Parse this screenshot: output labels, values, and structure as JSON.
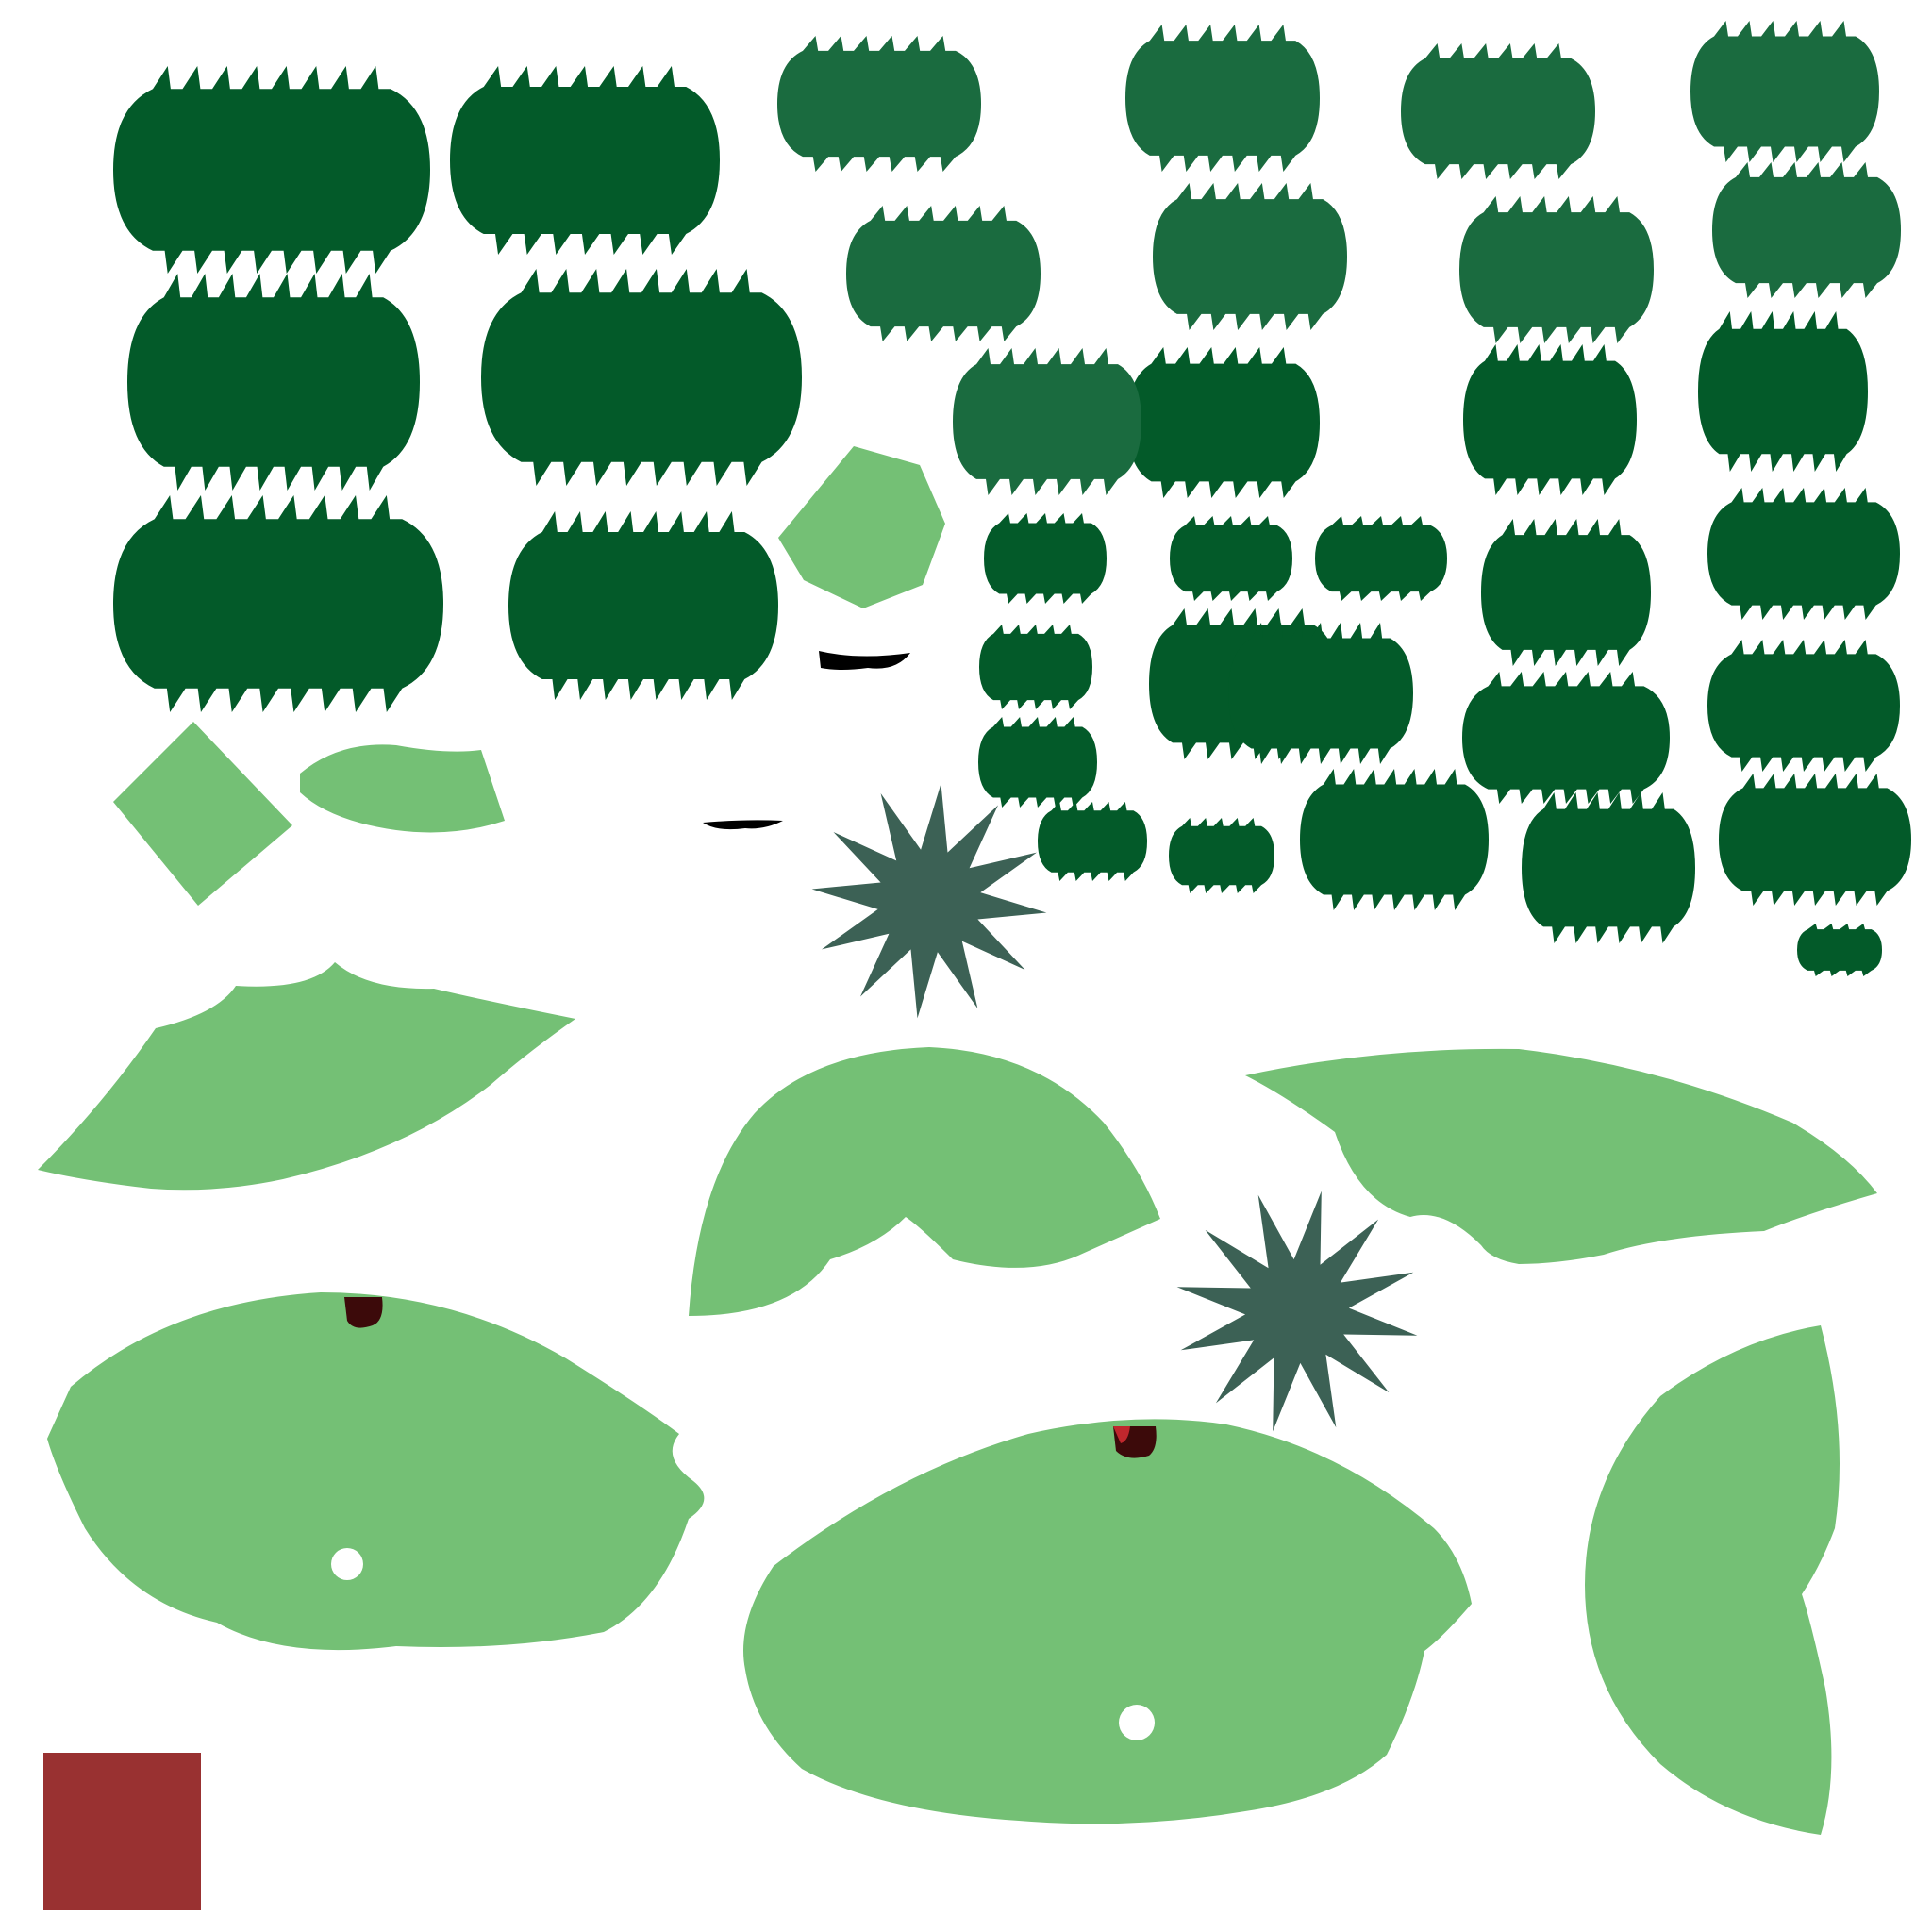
{
  "colors": {
    "background": "#ffffff",
    "leaf_dark": "#035a29",
    "leaf_mid": "#1a6b3f",
    "leaf_light": "#74c075",
    "leaf_shadow": "#3c6155",
    "berry_red": "#c0272d",
    "berry_dark": "#3c0a0a",
    "swatch_red": "#993131",
    "stroke_black": "#000000"
  },
  "legend": []
}
